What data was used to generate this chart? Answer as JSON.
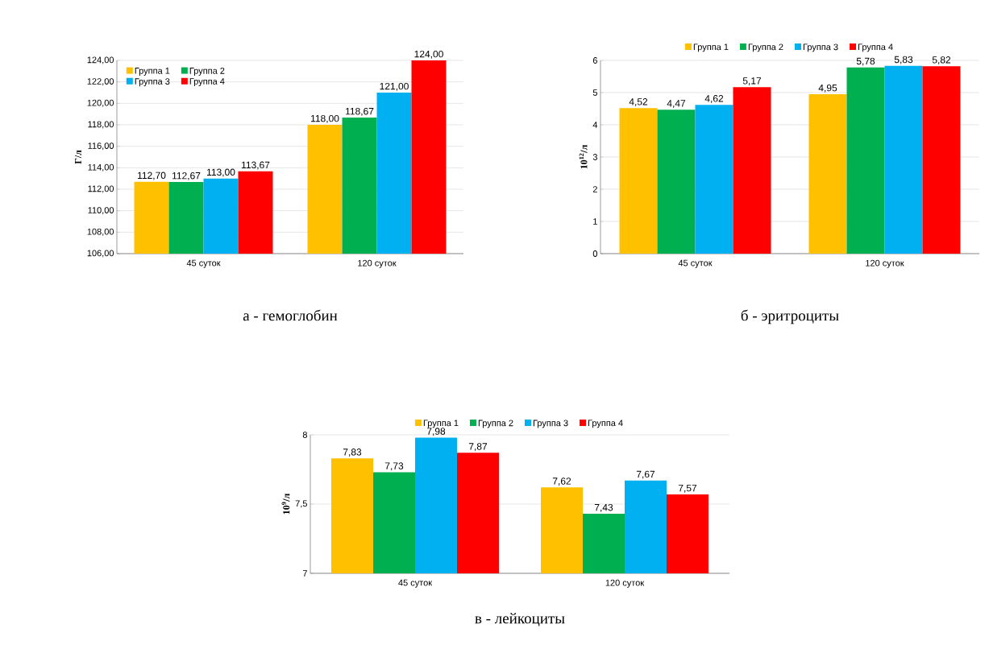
{
  "chart_data": [
    {
      "type": "bar",
      "title": "а - гемоглобин",
      "ylabel": "Г/л",
      "categories": [
        "45 суток",
        "120 суток"
      ],
      "series": [
        {
          "name": "Группа 1",
          "color": "#ffc000",
          "values": [
            112.7,
            118.0
          ],
          "value_labels": [
            "112,70",
            "118,00"
          ]
        },
        {
          "name": "Группа 2",
          "color": "#00b050",
          "values": [
            112.67,
            118.67
          ],
          "value_labels": [
            "112,67",
            "118,67"
          ]
        },
        {
          "name": "Группа 3",
          "color": "#00b0f0",
          "values": [
            113.0,
            121.0
          ],
          "value_labels": [
            "113,00",
            "121,00"
          ]
        },
        {
          "name": "Группа 4",
          "color": "#ff0000",
          "values": [
            113.67,
            124.0
          ],
          "value_labels": [
            "113,67",
            "124,00"
          ]
        }
      ],
      "ylim": [
        106,
        124
      ],
      "yticks": [
        {
          "value": 106,
          "label": "106,00"
        },
        {
          "value": 108,
          "label": "108,00"
        },
        {
          "value": 110,
          "label": "110,00"
        },
        {
          "value": 112,
          "label": "112,00"
        },
        {
          "value": 114,
          "label": "114,00"
        },
        {
          "value": 116,
          "label": "116,00"
        },
        {
          "value": 118,
          "label": "118,00"
        },
        {
          "value": 120,
          "label": "120,00"
        },
        {
          "value": 122,
          "label": "122,00"
        },
        {
          "value": 124,
          "label": "124,00"
        }
      ],
      "grid": "y",
      "legend": "top left"
    },
    {
      "type": "bar",
      "title": "б - эритроциты",
      "ylabel": "10$^{12}$/л",
      "categories": [
        "45 суток",
        "120 суток"
      ],
      "series": [
        {
          "name": "Группа 1",
          "color": "#ffc000",
          "values": [
            4.52,
            4.95
          ],
          "value_labels": [
            "4,52",
            "4,95"
          ]
        },
        {
          "name": "Группа 2",
          "color": "#00b050",
          "values": [
            4.47,
            5.78
          ],
          "value_labels": [
            "4,47",
            "5,78"
          ]
        },
        {
          "name": "Группа 3",
          "color": "#00b0f0",
          "values": [
            4.62,
            5.83
          ],
          "value_labels": [
            "4,62",
            "5,83"
          ]
        },
        {
          "name": "Группа 4",
          "color": "#ff0000",
          "values": [
            5.17,
            5.82
          ],
          "value_labels": [
            "5,17",
            "5,82"
          ]
        }
      ],
      "ylim": [
        0,
        6
      ],
      "yticks": [
        0,
        1,
        2,
        3,
        4,
        5,
        6
      ],
      "grid": "y",
      "legend": "top"
    },
    {
      "type": "bar",
      "title": "в - лейкоциты",
      "ylabel": "10$^{9}$/л",
      "categories": [
        "45 суток",
        "120 суток"
      ],
      "series": [
        {
          "name": "Группа 1",
          "color": "#ffc000",
          "values": [
            7.83,
            7.62
          ],
          "value_labels": [
            "7,83",
            "7,62"
          ]
        },
        {
          "name": "Группа 2",
          "color": "#00b050",
          "values": [
            7.73,
            7.43
          ],
          "value_labels": [
            "7,73",
            "7,43"
          ]
        },
        {
          "name": "Группа 3",
          "color": "#00b0f0",
          "values": [
            7.98,
            7.67
          ],
          "value_labels": [
            "7,98",
            "7,67"
          ]
        },
        {
          "name": "Группа 4",
          "color": "#ff0000",
          "values": [
            7.87,
            7.57
          ],
          "value_labels": [
            "7,87",
            "7,57"
          ]
        }
      ],
      "ylim": [
        7,
        8
      ],
      "yticks": [
        7,
        {
          "value": 7.5,
          "label": "7,5"
        },
        8
      ],
      "grid": "y",
      "legend": "top"
    }
  ]
}
